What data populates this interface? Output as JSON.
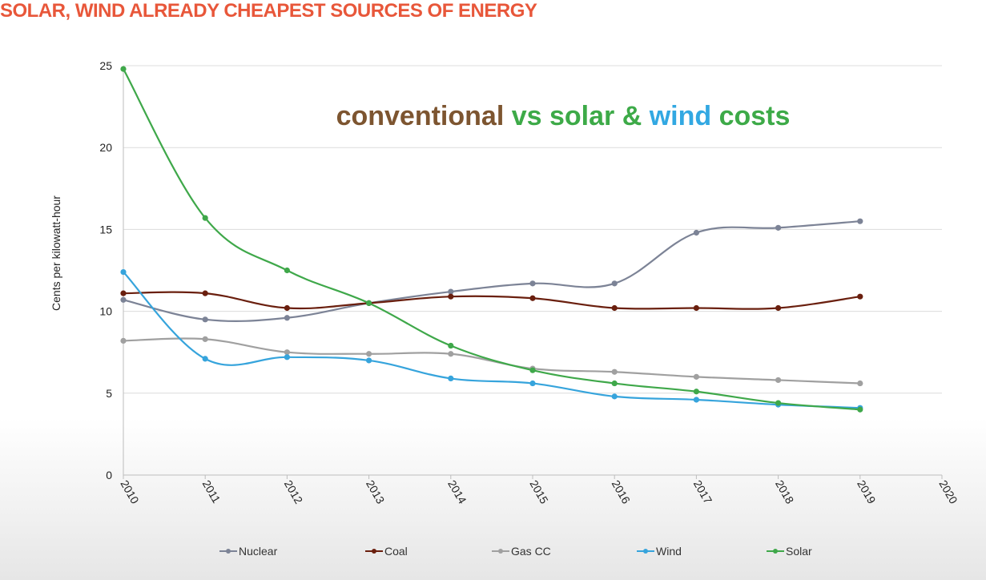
{
  "page": {
    "title": "SOLAR, WIND ALREADY CHEAPEST SOURCES OF ENERGY"
  },
  "chart_data": {
    "type": "line",
    "title": "conventional vs solar & wind costs",
    "title_parts": [
      {
        "text": "conventional",
        "color": "#7d5530"
      },
      {
        "text": " vs solar & ",
        "color": "#3daa48"
      },
      {
        "text": "wind",
        "color": "#32a8e2"
      },
      {
        "text": " costs",
        "color": "#3daa48"
      }
    ],
    "xlabel": "",
    "ylabel": "Cents per kilowatt-hour",
    "xlim": [
      2010,
      2020
    ],
    "ylim": [
      0,
      25
    ],
    "x_ticks": [
      "2010",
      "2011",
      "2012",
      "2013",
      "2014",
      "2015",
      "2016",
      "2017",
      "2018",
      "2019",
      "2020"
    ],
    "y_ticks": [
      "0",
      "5",
      "10",
      "15",
      "20",
      "25"
    ],
    "grid": true,
    "legend_position": "bottom",
    "x": [
      2010,
      2011,
      2012,
      2013,
      2014,
      2015,
      2016,
      2017,
      2018,
      2019
    ],
    "series": [
      {
        "name": "Nuclear",
        "color": "#7c8396",
        "values": [
          10.7,
          9.5,
          9.6,
          10.5,
          11.2,
          11.7,
          11.7,
          14.8,
          15.1,
          15.5
        ]
      },
      {
        "name": "Coal",
        "color": "#6a1f0e",
        "values": [
          11.1,
          11.1,
          10.2,
          10.5,
          10.9,
          10.8,
          10.2,
          10.2,
          10.2,
          10.9
        ]
      },
      {
        "name": "Gas CC",
        "color": "#a0a0a0",
        "values": [
          8.2,
          8.3,
          7.5,
          7.4,
          7.4,
          6.5,
          6.3,
          6.0,
          5.8,
          5.6
        ]
      },
      {
        "name": "Wind",
        "color": "#36a4dc",
        "values": [
          12.4,
          7.1,
          7.2,
          7.0,
          5.9,
          5.6,
          4.8,
          4.6,
          4.3,
          4.1
        ]
      },
      {
        "name": "Solar",
        "color": "#3fa84a",
        "values": [
          24.8,
          15.7,
          12.5,
          10.5,
          7.9,
          6.4,
          5.6,
          5.1,
          4.4,
          4.0
        ]
      }
    ]
  }
}
